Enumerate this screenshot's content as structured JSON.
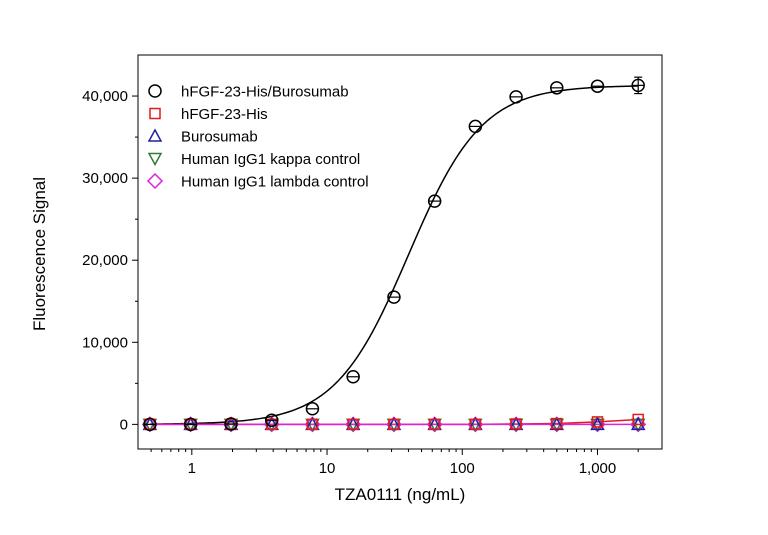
{
  "chart_data": {
    "type": "scatter",
    "title": "",
    "xlabel": "TZA0111 (ng/mL)",
    "ylabel": "Fluorescence Signal",
    "xscale": "log",
    "xlim": [
      0.4,
      3000
    ],
    "ylim": [
      -3000,
      45000
    ],
    "x_ticks": [
      1,
      10,
      100,
      1000
    ],
    "x_tick_labels": [
      "1",
      "10",
      "100",
      "1,000"
    ],
    "y_ticks": [
      0,
      10000,
      20000,
      30000,
      40000
    ],
    "y_tick_labels": [
      "0",
      "10,000",
      "20,000",
      "30,000",
      "40,000"
    ],
    "grid": false,
    "legend_position": "top-left",
    "x": [
      0.49,
      0.98,
      1.95,
      3.9,
      7.8,
      15.6,
      31.25,
      62.5,
      125,
      250,
      500,
      1000,
      2000
    ],
    "series": [
      {
        "name": "hFGF-23-His/Burosumab",
        "marker": "circle",
        "color": "#000000",
        "values": [
          0,
          0,
          50,
          500,
          1900,
          5800,
          15500,
          27200,
          36300,
          39900,
          41000,
          41200,
          41300
        ],
        "error": [
          0,
          0,
          0,
          0,
          0,
          0,
          0,
          0,
          0,
          0,
          0,
          0,
          1000
        ],
        "fit_curve": true
      },
      {
        "name": "hFGF-23-His",
        "marker": "square",
        "color": "#e41a1c",
        "values": [
          0,
          0,
          0,
          0,
          0,
          0,
          0,
          0,
          0,
          50,
          100,
          300,
          600
        ],
        "connect": true
      },
      {
        "name": "Burosumab",
        "marker": "triangle-up",
        "color": "#1f1f9e",
        "values": [
          0,
          0,
          0,
          0,
          0,
          0,
          0,
          0,
          0,
          0,
          0,
          0,
          0
        ]
      },
      {
        "name": "Human IgG1 kappa control",
        "marker": "triangle-down",
        "color": "#2e7d32",
        "values": [
          0,
          0,
          0,
          0,
          0,
          0,
          0,
          0,
          0,
          0,
          0,
          0,
          0
        ]
      },
      {
        "name": "Human IgG1 lambda control",
        "marker": "diamond",
        "color": "#e020e0",
        "values": [
          0,
          0,
          0,
          0,
          0,
          0,
          0,
          0,
          0,
          0,
          0,
          0,
          0
        ],
        "connect": true
      }
    ]
  }
}
